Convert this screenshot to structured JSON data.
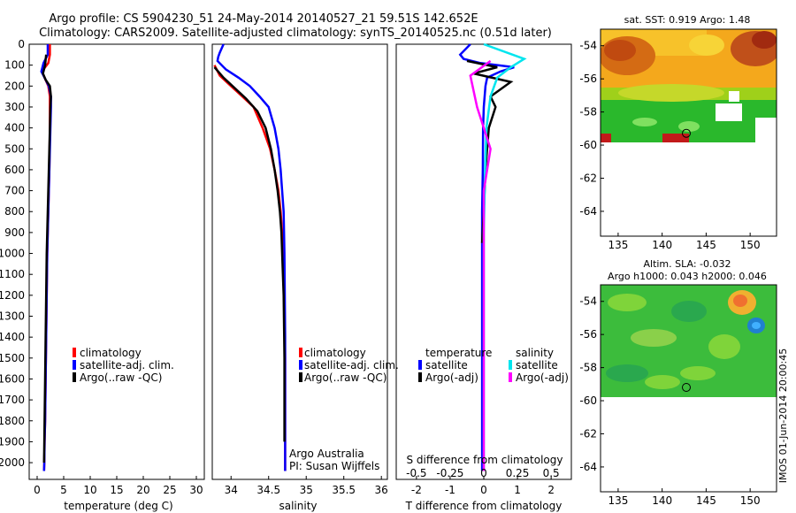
{
  "titles": {
    "line1": "Argo profile: CS 5904230_51 24-May-2014 20140527_21 59.51S 142.652E",
    "line2": "Climatology: CARS2009. Satellite-adjusted climatology: synTS_20140525.nc (0.51d later)"
  },
  "legend_tsal": {
    "climatology": "climatology",
    "satellite": "satellite-adj. clim.",
    "argo": "Argo(..raw -QC)"
  },
  "legend_diff": {
    "temp_header": "temperature",
    "sal_header": "salinity",
    "temp_satellite": "satellite",
    "temp_argo": "Argo(-adj)",
    "sal_satellite": "satellite",
    "sal_argo": "Argo(-adj)"
  },
  "credit": {
    "line1": "Argo Australia",
    "line2": "PI: Susan Wijffels"
  },
  "map_sst": {
    "title": "sat. SST: 0.919 Argo: 1.48"
  },
  "map_sla": {
    "title1": "Altim. SLA: -0.032",
    "title2": "Argo h1000: 0.043 h2000: 0.046"
  },
  "watermark": "IMOS 01-Jun-2014 20:00:45",
  "colors": {
    "climatology": "#ff0000",
    "satellite": "#0000ff",
    "argo": "#000000",
    "sal_satellite": "#00e5ee",
    "sal_argo": "#ff00ff"
  },
  "chart_data": [
    {
      "type": "line",
      "xlabel": "temperature (deg C)",
      "ylabel": "",
      "xlim": [
        -1.5,
        31.5
      ],
      "ylim": [
        2080,
        0
      ],
      "xticks": [
        0,
        5,
        10,
        15,
        20,
        25,
        30
      ],
      "yticks": [
        0,
        100,
        200,
        300,
        400,
        500,
        600,
        700,
        800,
        900,
        1000,
        1100,
        1200,
        1300,
        1400,
        1500,
        1600,
        1700,
        1800,
        1900,
        2000
      ],
      "series": [
        {
          "name": "climatology",
          "color": "#ff0000",
          "x": [
            2.4,
            2.4,
            2.1,
            0.9,
            1.4,
            2.1,
            2.4,
            2.4,
            2.4,
            2.35,
            2.3,
            2.2,
            2.1,
            2.0,
            1.9,
            1.8,
            1.7,
            1.6,
            1.5,
            1.4,
            1.35,
            1.3
          ],
          "y": [
            0,
            50,
            90,
            130,
            160,
            200,
            250,
            300,
            400,
            500,
            600,
            700,
            800,
            900,
            1000,
            1200,
            1400,
            1600,
            1800,
            1900,
            2000,
            2040
          ]
        },
        {
          "name": "satellite-adj. clim.",
          "color": "#0000ff",
          "x": [
            2.0,
            2.0,
            1.2,
            0.8,
            1.4,
            2.2,
            2.6,
            2.6,
            2.5,
            2.4,
            2.3,
            2.2,
            2.1,
            2.0,
            1.9,
            1.8,
            1.7,
            1.6,
            1.5,
            1.4,
            1.35,
            1.3
          ],
          "y": [
            0,
            50,
            90,
            130,
            160,
            200,
            250,
            300,
            400,
            500,
            600,
            700,
            800,
            900,
            1000,
            1200,
            1400,
            1600,
            1800,
            1900,
            2000,
            2040
          ]
        },
        {
          "name": "Argo(..raw -QC)",
          "color": "#000000",
          "x": [
            1.7,
            1.5,
            1.1,
            1.6,
            2.4,
            2.6,
            2.5,
            2.4,
            2.3,
            2.2,
            2.1,
            2.0,
            1.9,
            1.8,
            1.7,
            1.6,
            1.5,
            1.4,
            1.35,
            1.3
          ],
          "y": [
            50,
            100,
            140,
            170,
            200,
            250,
            300,
            400,
            500,
            600,
            700,
            800,
            900,
            1000,
            1200,
            1400,
            1600,
            1800,
            1900,
            2000
          ]
        }
      ]
    },
    {
      "type": "line",
      "xlabel": "salinity",
      "ylabel": "",
      "xlim": [
        33.75,
        36.08
      ],
      "ylim": [
        2080,
        0
      ],
      "xticks": [
        34,
        34.5,
        35,
        35.5,
        36
      ],
      "series": [
        {
          "name": "climatology",
          "color": "#ff0000",
          "x": [
            33.78,
            33.85,
            34.0,
            34.15,
            34.3,
            34.42,
            34.52,
            34.58,
            34.63,
            34.66,
            34.68,
            34.7,
            34.71,
            34.72,
            34.72,
            34.72
          ],
          "y": [
            100,
            150,
            200,
            250,
            300,
            400,
            500,
            600,
            700,
            800,
            900,
            1000,
            1200,
            1500,
            1800,
            2040
          ]
        },
        {
          "name": "satellite-adj. clim.",
          "color": "#0000ff",
          "x": [
            33.9,
            33.85,
            33.83,
            33.82,
            33.93,
            34.1,
            34.25,
            34.38,
            34.5,
            34.58,
            34.63,
            34.66,
            34.68,
            34.7,
            34.71,
            34.72,
            34.72,
            34.72
          ],
          "y": [
            0,
            40,
            60,
            80,
            120,
            160,
            200,
            250,
            300,
            400,
            500,
            600,
            700,
            800,
            1000,
            1400,
            1800,
            2040
          ]
        },
        {
          "name": "Argo(..raw -QC)",
          "color": "#000000",
          "x": [
            33.78,
            33.9,
            34.05,
            34.2,
            34.35,
            34.46,
            34.53,
            34.58,
            34.62,
            34.65,
            34.67,
            34.68,
            34.7,
            34.71,
            34.71
          ],
          "y": [
            110,
            160,
            210,
            260,
            320,
            400,
            500,
            600,
            700,
            800,
            900,
            1000,
            1200,
            1500,
            1900
          ]
        }
      ]
    },
    {
      "type": "line",
      "xlabel": "T difference from climatology",
      "xlabel2": "S difference from climatology",
      "xlim": [
        -2.6,
        2.6
      ],
      "xticks_T": [
        -2,
        -1,
        0,
        1,
        2
      ],
      "xticks_S": [
        -0.5,
        -0.25,
        0,
        0.25,
        0.5
      ],
      "ylim": [
        2080,
        0
      ],
      "series": [
        {
          "name": "temperature satellite",
          "color": "#0000ff",
          "axis": "T",
          "x": [
            -0.4,
            -0.7,
            -0.6,
            -0.1,
            0.9,
            0.5,
            0.1,
            0.05,
            0.0,
            -0.02,
            -0.03,
            -0.05,
            -0.05,
            -0.05,
            -0.05,
            -0.05,
            -0.05
          ],
          "y": [
            0,
            50,
            70,
            90,
            110,
            130,
            160,
            200,
            300,
            400,
            600,
            800,
            1000,
            1300,
            1600,
            1900,
            2040
          ]
        },
        {
          "name": "temperature Argo(-adj)",
          "color": "#000000",
          "axis": "T",
          "x": [
            -0.5,
            0.4,
            -0.3,
            0.8,
            0.2,
            0.35,
            0.15,
            0.05,
            0.0,
            -0.05
          ],
          "y": [
            80,
            110,
            140,
            180,
            250,
            300,
            400,
            600,
            800,
            950
          ]
        },
        {
          "name": "salinity satellite",
          "color": "#00e5ee",
          "axis": "S",
          "x": [
            0.0,
            0.3,
            0.2,
            0.1,
            0.05,
            0.02,
            0.01,
            0.0,
            0.0,
            0.0
          ],
          "y": [
            0,
            70,
            110,
            160,
            250,
            400,
            600,
            900,
            1400,
            2040
          ]
        },
        {
          "name": "salinity Argo(-adj)",
          "color": "#ff00ff",
          "axis": "S",
          "x": [
            0.05,
            -0.1,
            -0.05,
            0.05,
            0.0,
            0.0,
            0.0,
            0.0
          ],
          "y": [
            80,
            150,
            300,
            500,
            700,
            1000,
            1500,
            2040
          ]
        }
      ]
    },
    {
      "type": "heatmap",
      "title": "sat. SST: 0.919 Argo: 1.48",
      "xlim": [
        133,
        153
      ],
      "ylim": [
        -65.5,
        -53
      ],
      "xticks": [
        135,
        140,
        145,
        150
      ],
      "yticks": [
        -54,
        -56,
        -58,
        -60,
        -62,
        -64
      ],
      "argo_position": {
        "lon": 142.652,
        "lat": -59.51
      }
    },
    {
      "type": "heatmap",
      "title": "Altim. SLA: -0.032",
      "subtitle": "Argo h1000: 0.043 h2000: 0.046",
      "xlim": [
        133,
        153
      ],
      "ylim": [
        -65.5,
        -53
      ],
      "xticks": [
        135,
        140,
        145,
        150
      ],
      "yticks": [
        -54,
        -56,
        -58,
        -60,
        -62,
        -64
      ],
      "argo_position": {
        "lon": 142.652,
        "lat": -59.51
      }
    }
  ]
}
